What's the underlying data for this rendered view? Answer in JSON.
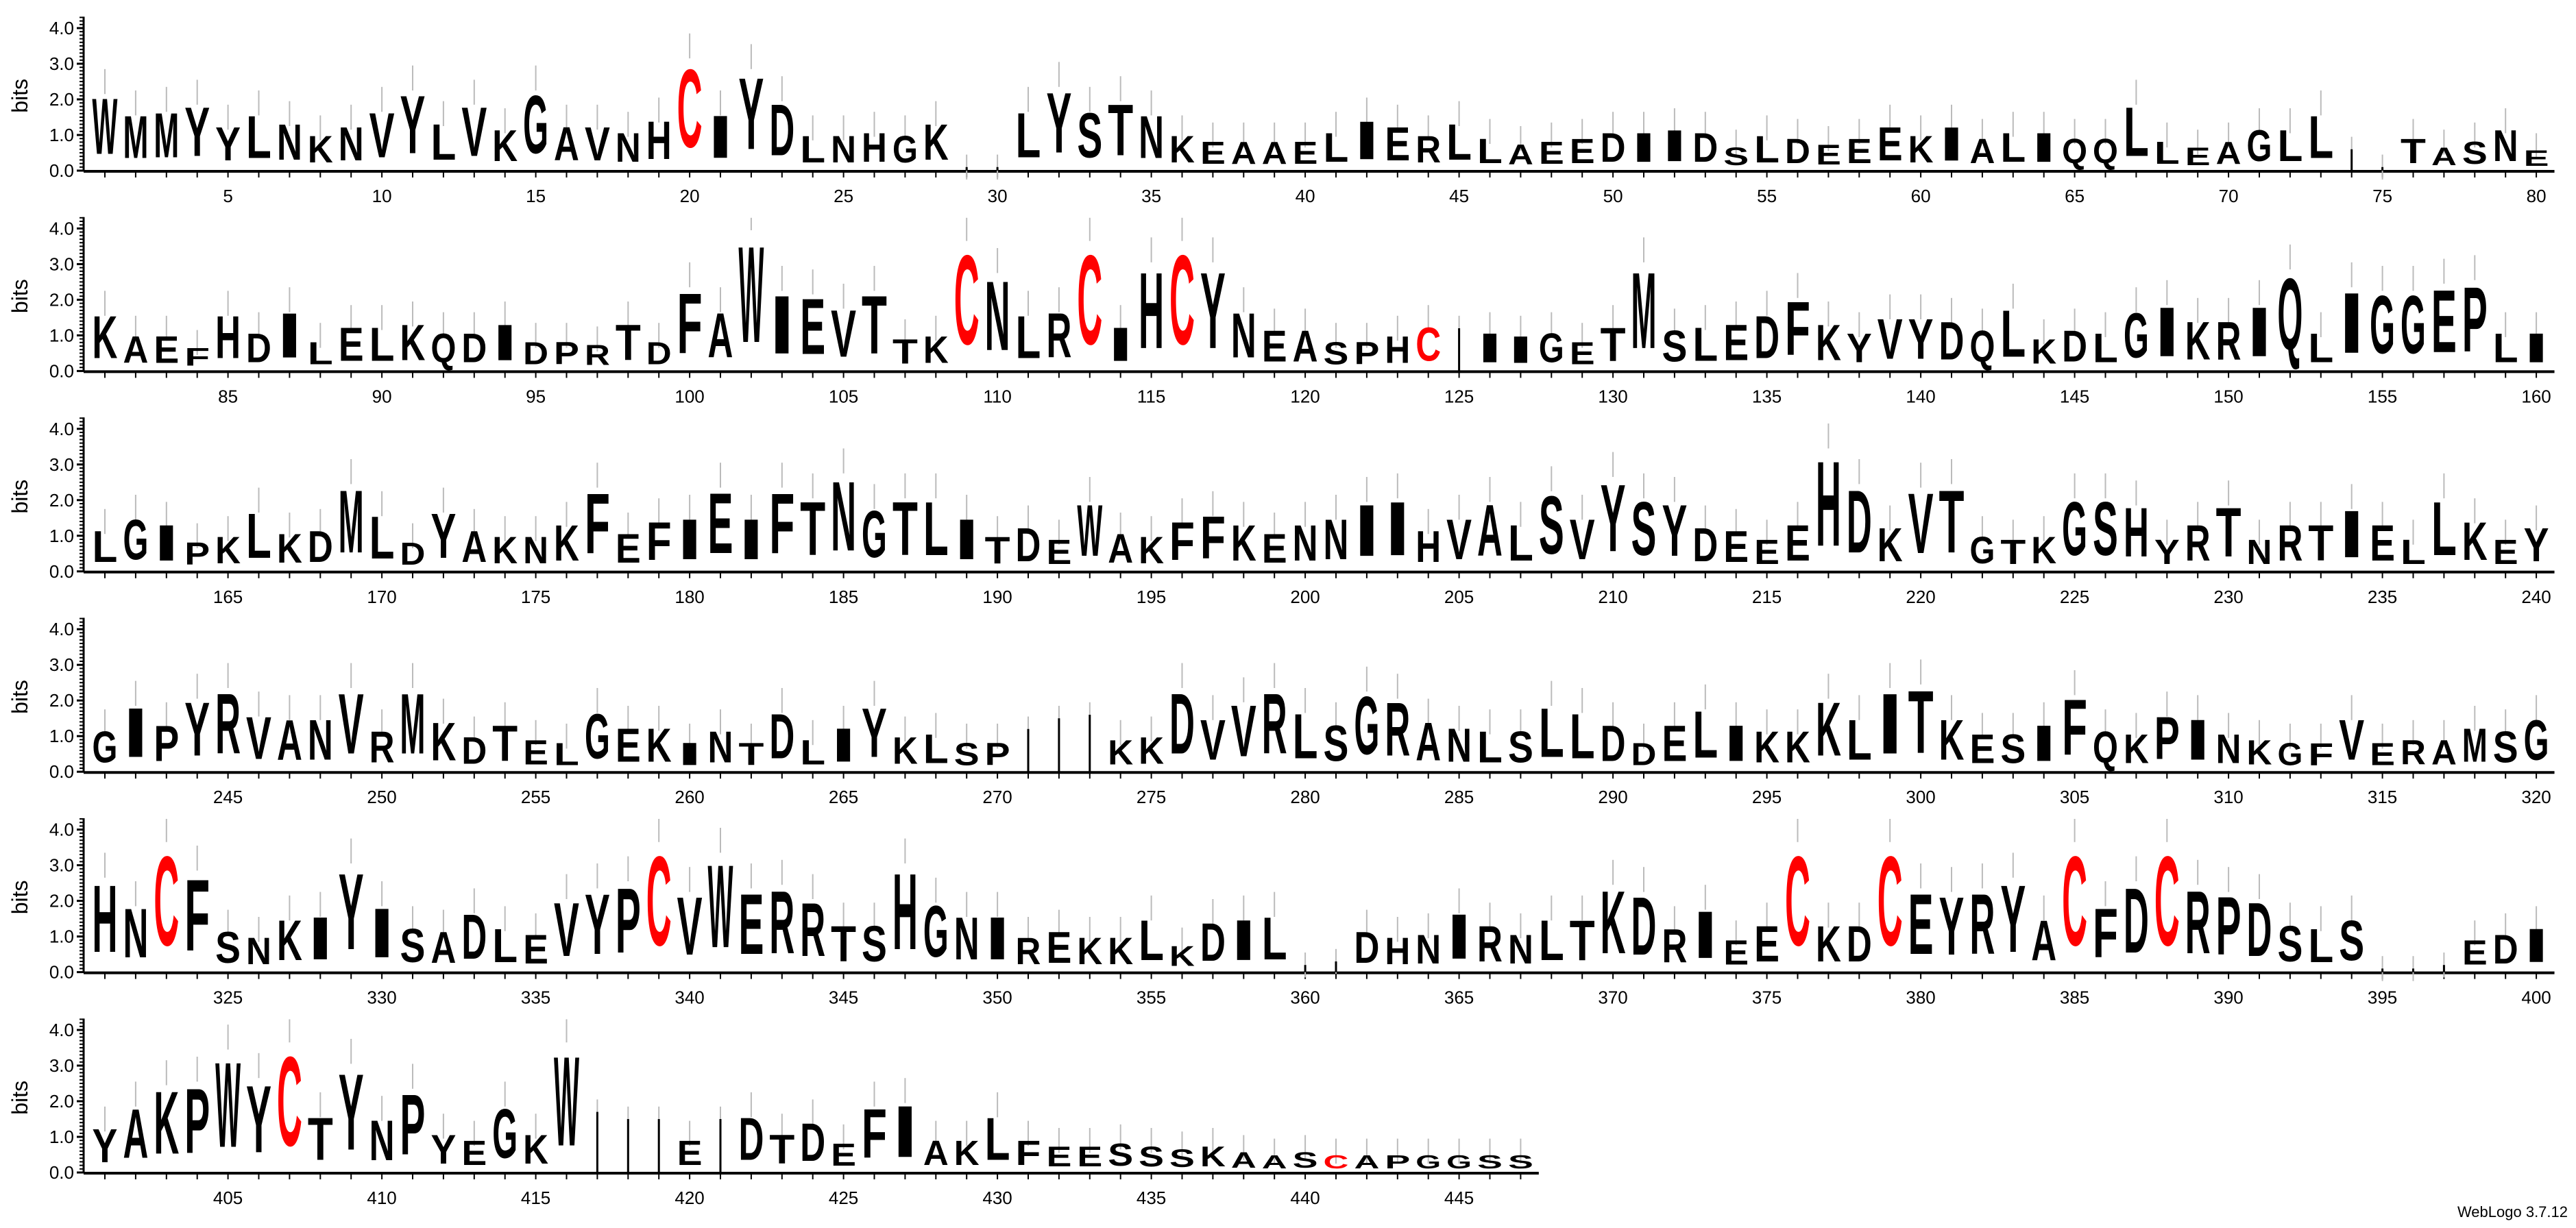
{
  "chart_data": {
    "type": "sequence-logo",
    "ylabel": "bits",
    "ylim": [
      0,
      4.32
    ],
    "yticks": [
      "0.0",
      "1.0",
      "2.0",
      "3.0",
      "4.0"
    ],
    "positions_per_row": 80,
    "first_position": 1,
    "last_position": 447,
    "xtick_every": 5,
    "colors": {
      "default": "#000000",
      "C": "#ff0000",
      "gap": "#000000",
      "errorbar": "#bbbbbb"
    },
    "top_residues": "WMMYYLNKNVYLVKGAVNHCIYDLNHGK--LYSTNKEAAELIERLLAEEDIIDSLDEEEKIALIQQLLEAGLL--TASNEKAEFHDILELKQDIDPRTDFAWIEVTTKCNLRCIHCYNEASPHC-IIGETMSLEDFKYVYDQLKDLGIKRIQLIGGEPLILGIPKLKDMLDYAKNKFEFIEIFTNGTLITDEWAKFFKENNIIHVALSVYSYDEEEHDKVTGTKGSHYRTNRTIELLKEYGIPYRVANVRMKDTELGEKINTDLIYKLSP---KKDVVRLSGRANLSLLDDELIKKKLITKESIFQKPINKGFVERAMSGHNCFSNKIYISADLEVYPCVWERRTSHGNIREKKLKDIL--DHNIRNLTKDRIEECKDCEYRYACFDCRPDSLS---EDIYAKPWYCTYNPYEGKW---E-DTDEFIAKLFEESSSKAASCAPGGSS",
    "stack_heights_bits": [
      [
        2.5,
        1.9,
        2.0,
        2.2,
        1.5,
        1.9,
        1.6,
        1.2,
        1.5,
        2.0,
        2.6,
        1.6,
        2.2,
        1.4,
        2.6,
        1.5,
        1.5,
        1.3,
        1.7,
        3.5,
        1.9,
        3.2,
        2.3,
        1.2,
        1.2,
        1.3,
        1.2,
        1.6,
        0.1,
        0.1,
        2.0,
        2.7,
        2.0,
        2.3,
        1.9,
        1.2,
        1.0,
        1.0,
        1.0,
        1.0,
        1.3,
        1.7,
        1.5,
        1.2,
        1.6,
        1.1,
        0.9,
        1.0,
        1.1,
        1.3,
        1.3,
        1.4,
        1.3,
        0.8,
        1.2,
        1.1,
        0.9,
        1.1,
        1.5,
        1.2,
        1.5,
        1.1,
        1.3,
        1.3,
        1.1,
        1.1,
        2.2,
        1.0,
        0.8,
        1.0,
        1.4,
        1.4,
        1.9,
        0.6,
        0.1,
        1.1,
        0.8,
        1.0,
        1.4,
        0.7
      ],
      [
        1.9,
        1.2,
        1.2,
        0.8,
        1.9,
        1.3,
        2.0,
        1.0,
        1.5,
        1.5,
        1.6,
        1.3,
        1.3,
        1.6,
        1.0,
        1.0,
        0.9,
        1.6,
        1.0,
        2.7,
        2.0,
        4.3,
        2.6,
        2.5,
        2.1,
        2.6,
        1.1,
        1.2,
        4.0,
        3.1,
        1.9,
        2.0,
        4.0,
        1.5,
        3.4,
        4.0,
        3.4,
        2.0,
        1.4,
        1.4,
        1.0,
        1.0,
        1.2,
        1.5,
        1.2,
        1.3,
        1.2,
        1.3,
        1.0,
        1.5,
        3.4,
        1.4,
        1.5,
        1.6,
        1.9,
        2.4,
        1.6,
        1.3,
        1.8,
        1.8,
        1.7,
        1.4,
        2.1,
        1.1,
        1.4,
        1.3,
        2.0,
        2.2,
        1.7,
        1.7,
        2.2,
        3.2,
        1.3,
        2.7,
        2.6,
        2.6,
        2.8,
        2.9,
        1.3,
        1.3
      ],
      [
        1.4,
        1.8,
        1.6,
        1.0,
        1.2,
        2.0,
        1.3,
        1.4,
        2.8,
        1.9,
        1.0,
        2.0,
        1.4,
        1.2,
        1.2,
        1.6,
        2.7,
        1.3,
        1.7,
        1.8,
        2.7,
        1.8,
        2.7,
        2.4,
        3.1,
        2.1,
        2.4,
        2.4,
        1.8,
        1.2,
        1.5,
        1.1,
        2.3,
        1.3,
        1.2,
        1.7,
        1.9,
        1.6,
        1.3,
        1.6,
        1.8,
        2.3,
        2.4,
        1.4,
        1.8,
        2.3,
        1.6,
        2.6,
        1.8,
        3.0,
        2.4,
        2.3,
        1.5,
        1.4,
        1.1,
        1.6,
        3.8,
        2.8,
        1.5,
        2.7,
        2.8,
        1.2,
        1.1,
        1.2,
        2.4,
        2.4,
        2.2,
        1.1,
        1.6,
        2.2,
        1.1,
        1.6,
        1.6,
        2.1,
        1.6,
        1.1,
        2.4,
        1.7,
        1.1,
        1.5
      ],
      [
        1.4,
        2.2,
        1.6,
        2.4,
        2.7,
        1.9,
        1.8,
        1.8,
        2.7,
        1.4,
        2.7,
        1.7,
        1.2,
        1.6,
        1.1,
        1.0,
        2.0,
        1.5,
        1.5,
        1.0,
        1.4,
        1.0,
        2.0,
        1.1,
        1.5,
        2.2,
        1.2,
        1.3,
        1.0,
        1.0,
        1.2,
        1.5,
        1.6,
        1.1,
        1.2,
        2.7,
        1.8,
        2.3,
        2.7,
        2.0,
        1.6,
        2.6,
        2.4,
        1.7,
        1.5,
        1.4,
        1.4,
        2.2,
        2.0,
        1.6,
        1.0,
        1.6,
        2.1,
        1.6,
        1.4,
        1.4,
        2.4,
        1.8,
        2.7,
        2.8,
        1.8,
        1.3,
        1.3,
        1.6,
        2.5,
        1.4,
        1.3,
        1.9,
        1.8,
        1.3,
        1.1,
        1.0,
        1.0,
        1.8,
        1.0,
        1.1,
        1.1,
        1.5,
        1.4,
        1.8
      ],
      [
        3.0,
        2.2,
        4.0,
        3.2,
        1.4,
        1.2,
        1.8,
        1.9,
        3.4,
        2.2,
        1.5,
        1.4,
        2.0,
        1.5,
        1.3,
        2.4,
        2.7,
        2.9,
        4.0,
        2.6,
        3.7,
        2.7,
        2.8,
        2.4,
        1.6,
        1.6,
        3.4,
        2.3,
        1.9,
        1.9,
        1.2,
        1.4,
        1.2,
        1.2,
        1.8,
        0.9,
        1.7,
        1.8,
        1.9,
        0.2,
        0.3,
        1.4,
        1.2,
        1.3,
        2.0,
        1.6,
        1.3,
        1.8,
        1.8,
        2.8,
        2.6,
        1.5,
        2.1,
        1.1,
        1.6,
        4.0,
        1.6,
        1.6,
        4.0,
        2.7,
        2.6,
        2.7,
        3.0,
        1.8,
        4.0,
        2.2,
        2.9,
        4.0,
        2.8,
        2.6,
        2.4,
        1.6,
        1.5,
        1.8,
        0.1,
        0.1,
        0.2,
        1.1,
        1.3,
        1.5
      ],
      [
        1.5,
        2.2,
        2.8,
        2.9,
        3.8,
        3.0,
        4.0,
        1.9,
        3.4,
        1.8,
        2.7,
        1.3,
        1.1,
        2.2,
        1.3,
        4.0,
        1.7,
        1.5,
        1.5,
        1.1,
        1.5,
        1.9,
        1.3,
        1.7,
        1.0,
        2.2,
        2.3,
        1.1,
        1.1,
        1.9,
        1.1,
        0.9,
        0.9,
        1.0,
        0.9,
        0.8,
        0.9,
        0.7,
        0.6,
        0.7,
        0.6,
        0.6,
        0.6,
        0.6,
        0.6,
        0.6,
        0.6
      ]
    ]
  },
  "footer": {
    "version_label": "WebLogo 3.7.12"
  }
}
